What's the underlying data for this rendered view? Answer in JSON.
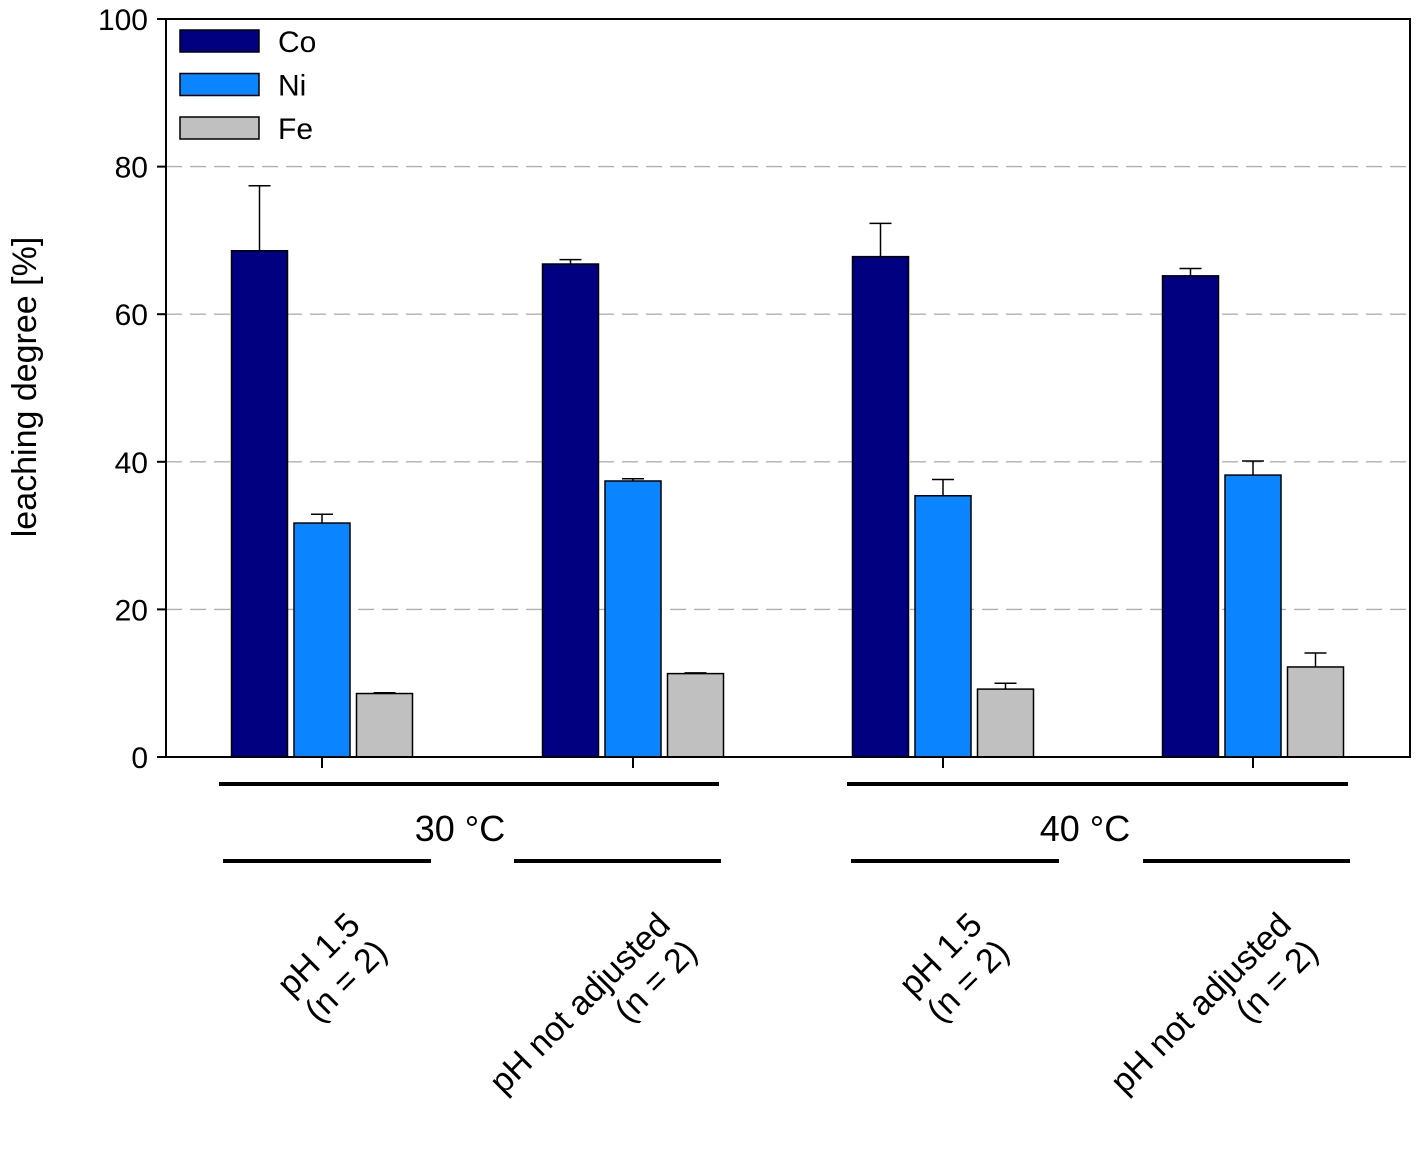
{
  "chart_data": {
    "type": "bar",
    "title": "",
    "xlabel": "",
    "ylabel": "leaching degree [%]",
    "ylim": [
      0,
      100
    ],
    "yticks": [
      "0",
      "20",
      "40",
      "60",
      "80",
      "100"
    ],
    "grid": true,
    "legend_position": "top-left",
    "categories": [
      {
        "line1": "pH 1.5",
        "line2": "(n = 2)"
      },
      {
        "line1": "pH not adjusted",
        "line2": "(n = 2)"
      },
      {
        "line1": "pH 1.5",
        "line2": "(n = 2)"
      },
      {
        "line1": "pH not adjusted",
        "line2": "(n = 2)"
      }
    ],
    "groups": [
      {
        "label": "30 °C",
        "categories": [
          0,
          1
        ]
      },
      {
        "label": "40 °C",
        "categories": [
          2,
          3
        ]
      }
    ],
    "series": [
      {
        "name": "Co",
        "color": "#000080",
        "values": [
          68.6,
          66.8,
          67.8,
          65.2
        ],
        "errors": [
          8.8,
          0.6,
          4.5,
          1.0
        ]
      },
      {
        "name": "Ni",
        "color": "#0a84ff",
        "values": [
          31.7,
          37.4,
          35.4,
          38.2
        ],
        "errors": [
          1.2,
          0.3,
          2.2,
          1.9
        ]
      },
      {
        "name": "Fe",
        "color": "#c0c0c0",
        "values": [
          8.6,
          11.3,
          9.2,
          12.2
        ],
        "errors": [
          0.1,
          0.1,
          0.8,
          1.9
        ]
      }
    ]
  }
}
